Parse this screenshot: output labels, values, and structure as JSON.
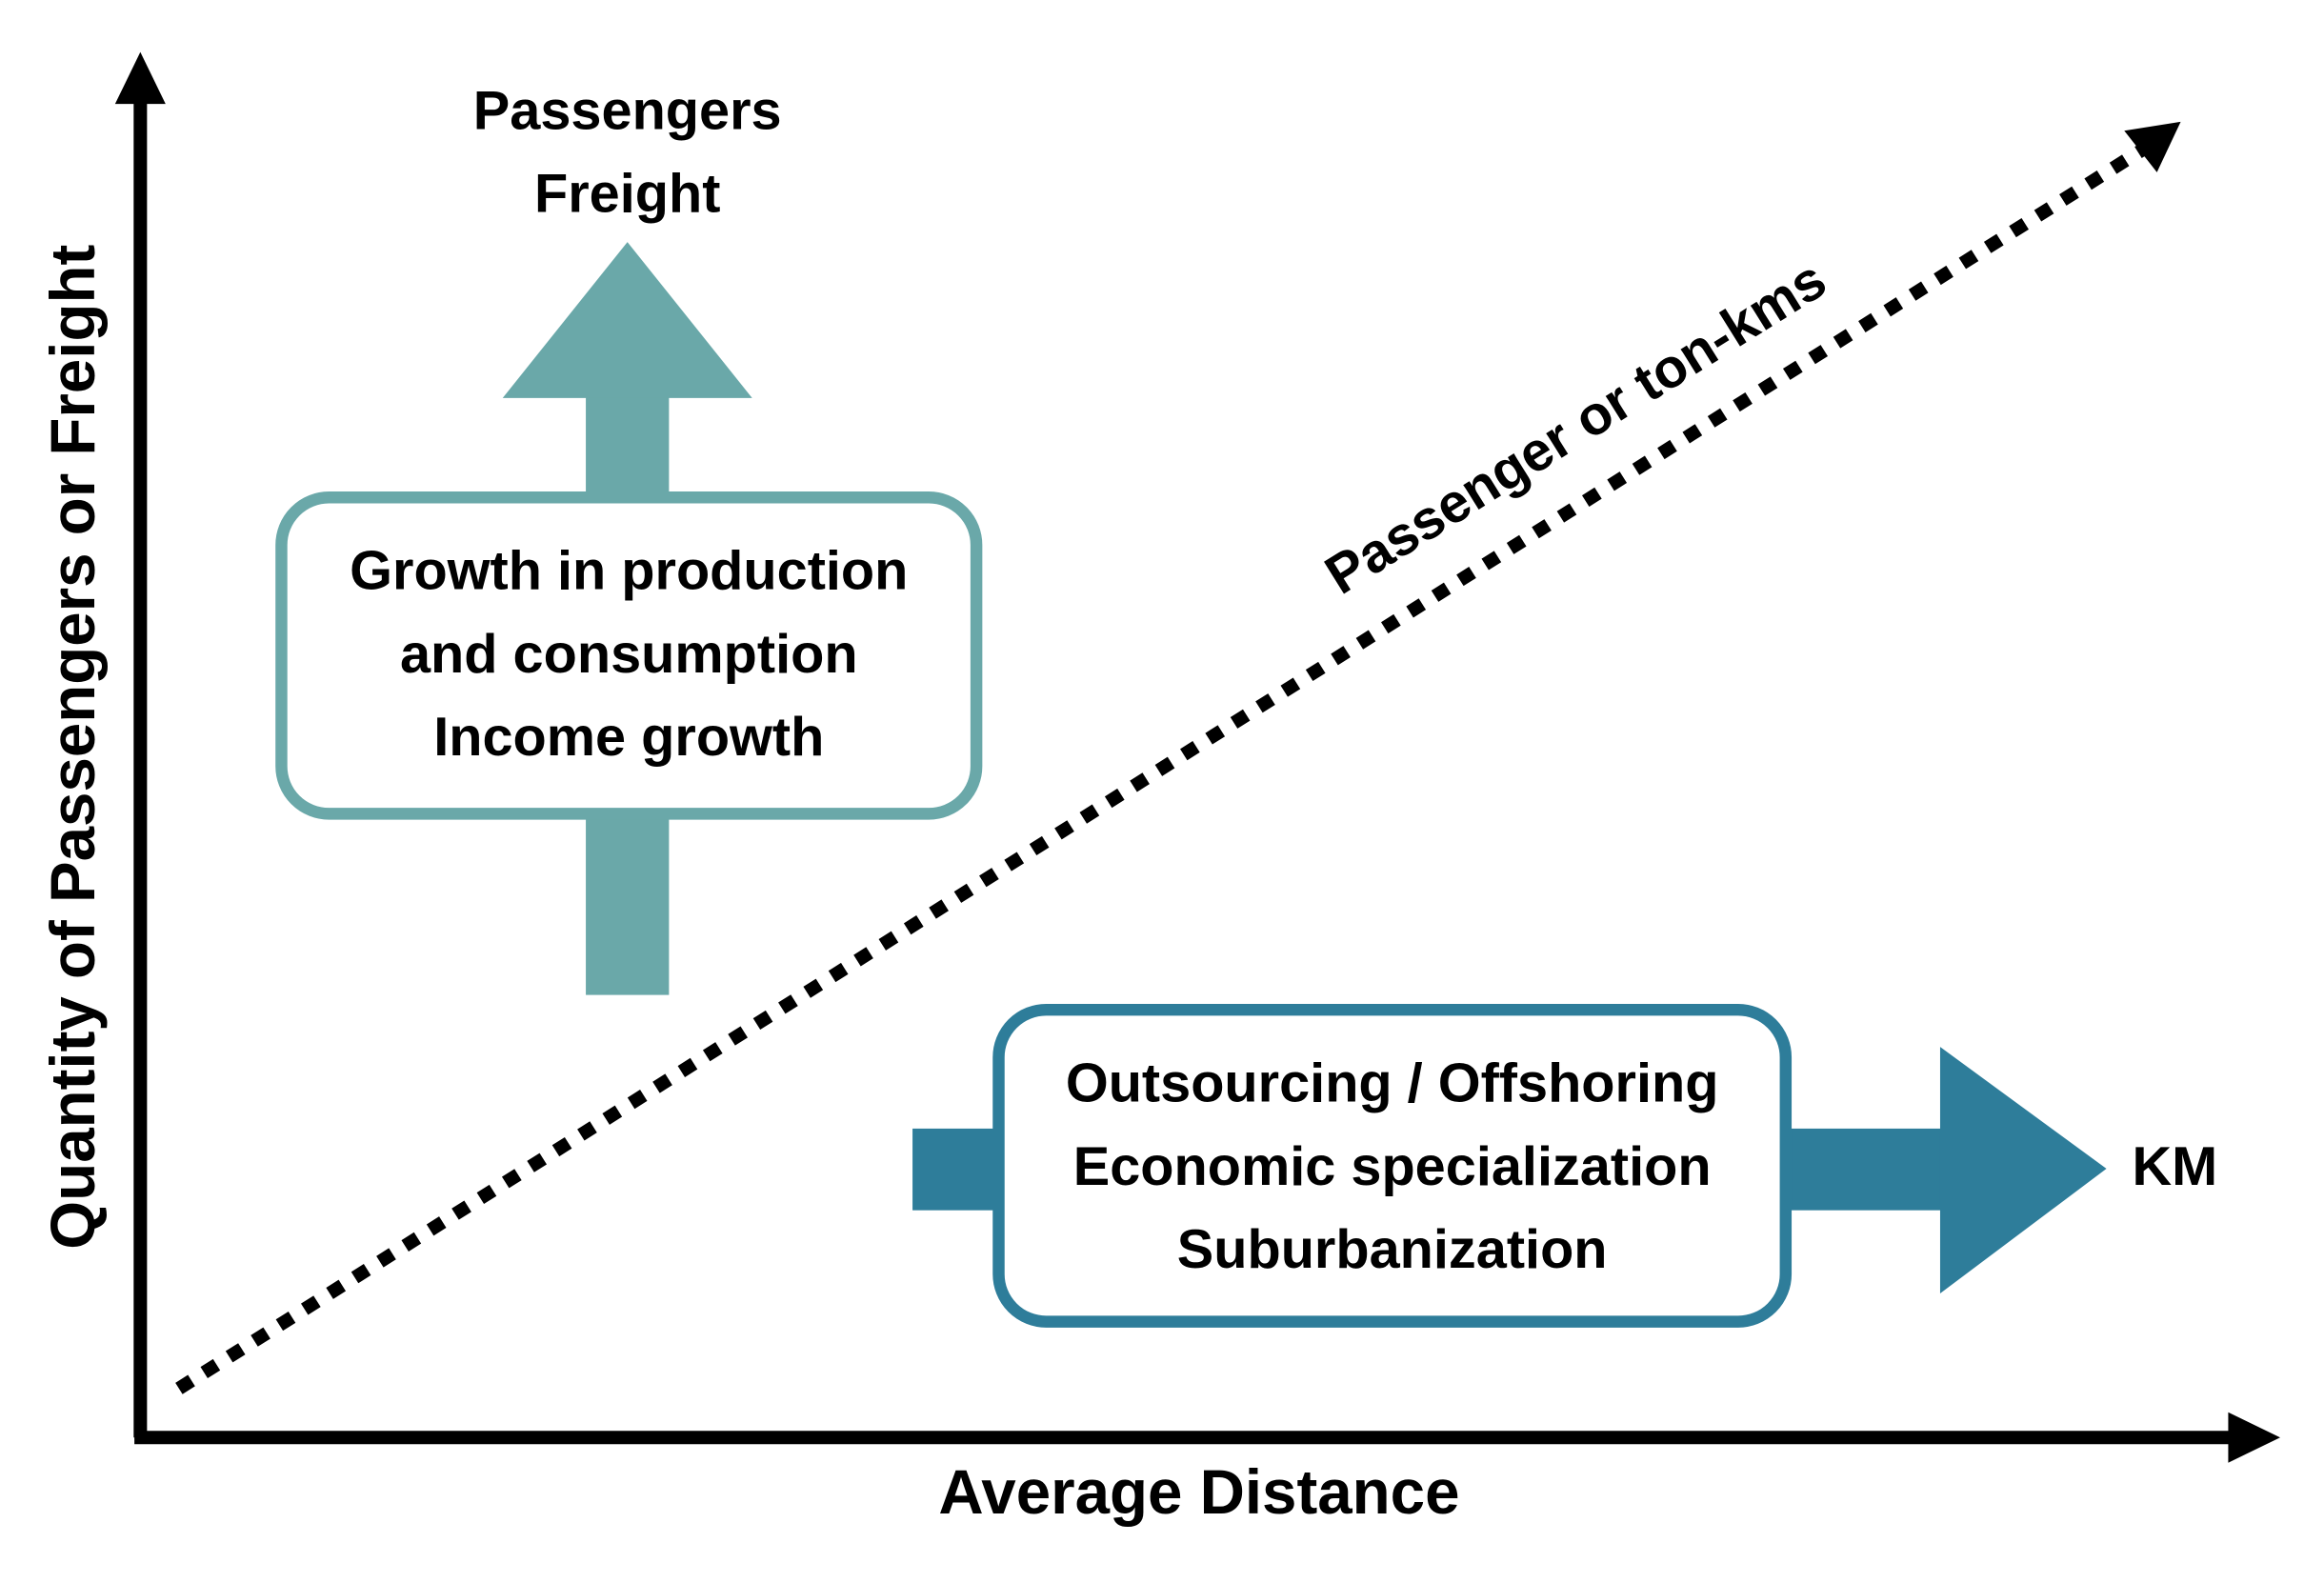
{
  "axes": {
    "x_label": "Average Distance",
    "y_label": "Quantity of Passengers or Freight"
  },
  "diagonal": {
    "label": "Passenger or ton-kms"
  },
  "vertical_arrow": {
    "top_labels": [
      "Passengers",
      "Freight"
    ],
    "box_lines": [
      "Growth in production",
      "and consumption",
      "Income growth"
    ]
  },
  "horizontal_arrow": {
    "end_label": "KM",
    "box_lines": [
      "Outsourcing / Offshoring",
      "Economic specialization",
      "Suburbanization"
    ]
  }
}
